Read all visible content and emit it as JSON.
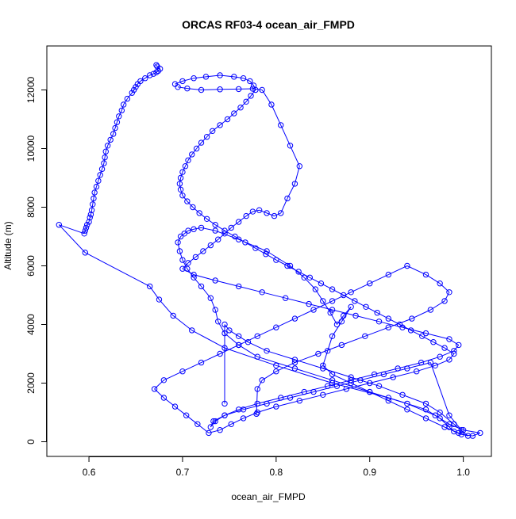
{
  "chart_data": {
    "type": "line",
    "title": "ORCAS RF03-4 ocean_air_FMPD",
    "xlabel": "ocean_air_FMPD",
    "ylabel": "Altitude (m)",
    "xlim": [
      0.555,
      1.03
    ],
    "ylim": [
      -500,
      13500
    ],
    "x_ticks": [
      0.6,
      0.7,
      0.8,
      0.9,
      1.0
    ],
    "x_tick_labels": [
      "0.6",
      "0.7",
      "0.8",
      "0.9",
      "1.0"
    ],
    "y_ticks": [
      0,
      2000,
      4000,
      6000,
      8000,
      10000,
      12000
    ],
    "y_tick_labels": [
      "0",
      "2000",
      "4000",
      "6000",
      "8000",
      "10000",
      "12000"
    ],
    "grid": false,
    "series_color": "#0000ff",
    "marker": "open-circle",
    "series": [
      {
        "x": [
          0.672,
          0.673,
          0.676,
          0.674,
          0.672,
          0.669,
          0.665,
          0.66,
          0.655,
          0.652,
          0.65,
          0.648,
          0.646,
          0.641,
          0.637,
          0.635,
          0.632,
          0.63,
          0.628,
          0.626,
          0.623,
          0.62,
          0.618,
          0.617,
          0.616,
          0.614,
          0.612,
          0.61,
          0.608,
          0.606,
          0.605,
          0.604,
          0.603,
          0.602,
          0.601,
          0.6,
          0.598,
          0.597,
          0.596,
          0.595,
          0.568,
          0.596,
          0.665,
          0.675,
          0.69,
          0.71,
          0.745,
          0.8,
          0.86,
          0.92,
          0.96,
          0.975,
          0.985,
          0.99,
          0.998,
          1.01,
          1.018,
          1.0,
          0.985,
          0.97,
          0.94,
          0.9,
          0.86,
          0.82,
          0.78,
          0.76,
          0.745,
          0.738,
          0.735,
          0.73,
          0.72,
          0.712,
          0.705,
          0.7,
          0.697,
          0.695,
          0.698,
          0.702,
          0.706,
          0.712,
          0.72,
          0.735,
          0.76,
          0.79,
          0.815,
          0.83,
          0.842,
          0.85,
          0.858,
          0.865,
          0.872,
          0.88,
          0.87,
          0.86,
          0.855,
          0.85,
          0.86,
          0.88,
          0.9,
          0.92,
          0.94,
          0.96,
          0.98,
          0.995,
          1.005,
          0.99,
          0.975,
          0.96,
          0.935,
          0.91,
          0.88,
          0.85,
          0.82,
          0.79,
          0.77,
          0.76,
          0.75,
          0.745,
          0.745
        ],
        "y": [
          12850,
          12800,
          12720,
          12650,
          12600,
          12550,
          12500,
          12400,
          12300,
          12200,
          12100,
          12000,
          11900,
          11700,
          11500,
          11300,
          11100,
          10900,
          10700,
          10500,
          10300,
          10100,
          9900,
          9700,
          9500,
          9300,
          9100,
          8900,
          8700,
          8500,
          8300,
          8100,
          7900,
          7750,
          7650,
          7500,
          7400,
          7300,
          7200,
          7100,
          7400,
          6450,
          5300,
          4850,
          4300,
          3800,
          3200,
          2600,
          2000,
          1500,
          1100,
          800,
          500,
          350,
          250,
          200,
          300,
          400,
          600,
          900,
          1300,
          1700,
          2100,
          2500,
          2900,
          3300,
          3700,
          4100,
          4500,
          4900,
          5300,
          5600,
          5900,
          6200,
          6500,
          6800,
          7000,
          7100,
          7200,
          7250,
          7300,
          7200,
          6900,
          6500,
          6000,
          5600,
          5200,
          4800,
          4400,
          4000,
          4300,
          4600,
          4100,
          3600,
          3100,
          2600,
          2300,
          2000,
          1700,
          1400,
          1100,
          800,
          500,
          300,
          200,
          600,
          1000,
          1300,
          1600,
          1900,
          2200,
          2500,
          2800,
          3100,
          3400,
          3600,
          3800,
          4000,
          1300
        ]
      },
      {
        "x": [
          0.692,
          0.7,
          0.712,
          0.725,
          0.74,
          0.755,
          0.765,
          0.772,
          0.776,
          0.778,
          0.773,
          0.768,
          0.762,
          0.755,
          0.748,
          0.74,
          0.732,
          0.726,
          0.72,
          0.715,
          0.71,
          0.706,
          0.703,
          0.7,
          0.698,
          0.697,
          0.698,
          0.7,
          0.705,
          0.711,
          0.718,
          0.726,
          0.735,
          0.745,
          0.756,
          0.767,
          0.778,
          0.789,
          0.8,
          0.812,
          0.824,
          0.836,
          0.848,
          0.86,
          0.872,
          0.884,
          0.896,
          0.908,
          0.92,
          0.932,
          0.944,
          0.956,
          0.968,
          0.98,
          0.99,
          0.985,
          0.97,
          0.95,
          0.925,
          0.9,
          0.875,
          0.85,
          0.825,
          0.8,
          0.78,
          0.765,
          0.752,
          0.74,
          0.728,
          0.716,
          0.704,
          0.692,
          0.68,
          0.67,
          0.68,
          0.7,
          0.72,
          0.74,
          0.76,
          0.78,
          0.8,
          0.82,
          0.84,
          0.86,
          0.88,
          0.9,
          0.92,
          0.94,
          0.96,
          0.975,
          0.985,
          0.98,
          0.965,
          0.945,
          0.92,
          0.895,
          0.87,
          0.845,
          0.82,
          0.8,
          0.785,
          0.78,
          0.779
        ],
        "y": [
          12200,
          12300,
          12400,
          12450,
          12500,
          12450,
          12400,
          12300,
          12150,
          12000,
          11800,
          11600,
          11400,
          11200,
          11000,
          10800,
          10600,
          10400,
          10200,
          10000,
          9800,
          9600,
          9400,
          9200,
          9000,
          8800,
          8600,
          8400,
          8200,
          8000,
          7800,
          7600,
          7400,
          7200,
          7000,
          6800,
          6600,
          6400,
          6200,
          6000,
          5800,
          5600,
          5400,
          5200,
          5000,
          4800,
          4600,
          4400,
          4200,
          4000,
          3800,
          3600,
          3400,
          3200,
          3000,
          2800,
          2600,
          2400,
          2200,
          2000,
          1800,
          1600,
          1400,
          1200,
          1000,
          800,
          600,
          400,
          300,
          600,
          900,
          1200,
          1500,
          1800,
          2100,
          2400,
          2700,
          3000,
          3300,
          3600,
          3900,
          4200,
          4500,
          4800,
          5100,
          5400,
          5700,
          6000,
          5700,
          5400,
          5100,
          4800,
          4500,
          4200,
          3900,
          3600,
          3300,
          3000,
          2700,
          2400,
          2100,
          1800,
          950
        ]
      },
      {
        "x": [
          0.695,
          0.705,
          0.72,
          0.74,
          0.76,
          0.775,
          0.785,
          0.795,
          0.805,
          0.815,
          0.825,
          0.82,
          0.812,
          0.805,
          0.798,
          0.79,
          0.782,
          0.775,
          0.768,
          0.76,
          0.752,
          0.745,
          0.738,
          0.73,
          0.722,
          0.714,
          0.706,
          0.7,
          0.712,
          0.735,
          0.76,
          0.785,
          0.81,
          0.835,
          0.86,
          0.885,
          0.91,
          0.935,
          0.96,
          0.985,
          0.995,
          0.99,
          0.975,
          0.955,
          0.93,
          0.905,
          0.88,
          0.855,
          0.83,
          0.805,
          0.78,
          0.76,
          0.745,
          0.735,
          0.73,
          0.733,
          0.745,
          0.765,
          0.79,
          0.815,
          0.84,
          0.865,
          0.89,
          0.915,
          0.94,
          0.965,
          0.985,
          0.998
        ],
        "y": [
          12100,
          12050,
          12000,
          12020,
          12030,
          12040,
          12000,
          11500,
          10800,
          10100,
          9400,
          8800,
          8300,
          7800,
          7700,
          7800,
          7900,
          7850,
          7700,
          7500,
          7300,
          7100,
          6900,
          6700,
          6500,
          6300,
          6100,
          5900,
          5700,
          5500,
          5300,
          5100,
          4900,
          4700,
          4500,
          4300,
          4100,
          3900,
          3700,
          3500,
          3300,
          3100,
          2900,
          2700,
          2500,
          2300,
          2100,
          1900,
          1700,
          1500,
          1300,
          1100,
          900,
          700,
          500,
          700,
          900,
          1100,
          1300,
          1500,
          1700,
          1900,
          2100,
          2300,
          2500,
          2700,
          900,
          400
        ]
      }
    ]
  }
}
